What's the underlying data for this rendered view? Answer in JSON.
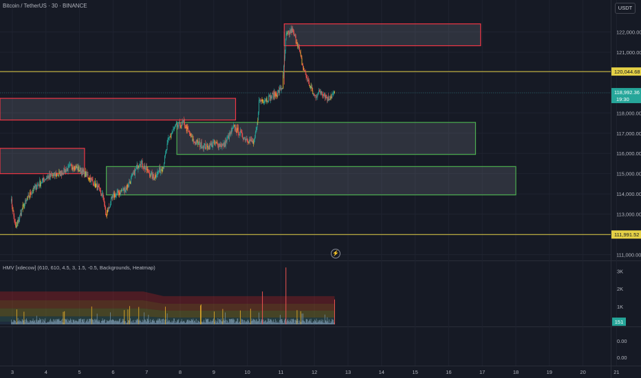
{
  "header": {
    "title": "Bitcoin / TetherUS · 30 · BINANCE",
    "currency_button": "USDT"
  },
  "indicator": {
    "label": "HMV [xdecow] (610, 610, 4.5, 3, 1.5, -0.5, Backgrounds, Heatmap)"
  },
  "colors": {
    "background": "#161a25",
    "bull": "#26a69a",
    "bear": "#ef5350",
    "highlight": "#f0b429",
    "level_line": "#e5d146",
    "zone_red": "#f23645",
    "zone_green": "#4caf50"
  },
  "price_labels": {
    "level_upper": "120,044.68",
    "current_price": "118,992.36",
    "countdown": "19:30",
    "level_lower": "111,991.52",
    "volume_current": "151"
  },
  "chart_data": {
    "type": "candlestick",
    "symbol": "Bitcoin / TetherUS",
    "interval": "30",
    "exchange": "BINANCE",
    "ylim": [
      111000,
      122500
    ],
    "y_ticks": [
      111000,
      112000,
      113000,
      114000,
      115000,
      116000,
      117000,
      118000,
      119000,
      120000,
      121000,
      122000
    ],
    "y_tick_labels": [
      "111,000.00",
      "112,000.00",
      "113,000.00",
      "114,000.00",
      "115,000.00",
      "116,000.00",
      "117,000.00",
      "118,000.00",
      "119,000.00",
      "120,000.00",
      "121,000.00",
      "122,000.00"
    ],
    "x_tick_labels": [
      "3",
      "4",
      "5",
      "6",
      "7",
      "8",
      "9",
      "10",
      "11",
      "12",
      "13",
      "14",
      "15",
      "16",
      "17",
      "18",
      "19",
      "20",
      "21"
    ],
    "horizontal_levels": [
      120044.68,
      111991.52
    ],
    "current_price": 118992.36,
    "price_path": [
      {
        "day": 2.95,
        "price": 113800
      },
      {
        "day": 3.1,
        "price": 112300
      },
      {
        "day": 3.3,
        "price": 113300
      },
      {
        "day": 3.6,
        "price": 114200
      },
      {
        "day": 4.0,
        "price": 114800
      },
      {
        "day": 4.4,
        "price": 115000
      },
      {
        "day": 4.8,
        "price": 115400
      },
      {
        "day": 5.0,
        "price": 115200
      },
      {
        "day": 5.3,
        "price": 114800
      },
      {
        "day": 5.5,
        "price": 114400
      },
      {
        "day": 5.72,
        "price": 113800
      },
      {
        "day": 5.78,
        "price": 112900
      },
      {
        "day": 6.0,
        "price": 113900
      },
      {
        "day": 6.4,
        "price": 114300
      },
      {
        "day": 6.8,
        "price": 115600
      },
      {
        "day": 7.2,
        "price": 114800
      },
      {
        "day": 7.5,
        "price": 115400
      },
      {
        "day": 7.65,
        "price": 116700
      },
      {
        "day": 7.85,
        "price": 117300
      },
      {
        "day": 8.1,
        "price": 117500
      },
      {
        "day": 8.4,
        "price": 116600
      },
      {
        "day": 8.8,
        "price": 116300
      },
      {
        "day": 9.0,
        "price": 116500
      },
      {
        "day": 9.3,
        "price": 116400
      },
      {
        "day": 9.6,
        "price": 117300
      },
      {
        "day": 9.9,
        "price": 116800
      },
      {
        "day": 10.2,
        "price": 116500
      },
      {
        "day": 10.3,
        "price": 117500
      },
      {
        "day": 10.35,
        "price": 118600
      },
      {
        "day": 10.6,
        "price": 118700
      },
      {
        "day": 10.9,
        "price": 119000
      },
      {
        "day": 11.05,
        "price": 119300
      },
      {
        "day": 11.15,
        "price": 121800
      },
      {
        "day": 11.33,
        "price": 122100
      },
      {
        "day": 11.5,
        "price": 121400
      },
      {
        "day": 11.65,
        "price": 120300
      },
      {
        "day": 11.8,
        "price": 119600
      },
      {
        "day": 12.0,
        "price": 118800
      },
      {
        "day": 12.2,
        "price": 119100
      },
      {
        "day": 12.4,
        "price": 118700
      },
      {
        "day": 12.6,
        "price": 118992
      }
    ],
    "zones": [
      {
        "type": "supply",
        "x_start": 11.1,
        "x_end": 16.95,
        "y_low": 121320,
        "y_high": 122400
      },
      {
        "type": "supply",
        "x_start": 2.6,
        "x_end": 9.65,
        "y_low": 117650,
        "y_high": 118720
      },
      {
        "type": "supply",
        "x_start": 2.6,
        "x_end": 5.15,
        "y_low": 115000,
        "y_high": 116250
      },
      {
        "type": "demand",
        "x_start": 7.9,
        "x_end": 16.8,
        "y_low": 115950,
        "y_high": 117530
      },
      {
        "type": "demand",
        "x_start": 5.8,
        "x_end": 18.0,
        "y_low": 113950,
        "y_high": 115350
      }
    ],
    "volume_indicator": {
      "name": "HMV [xdecow]",
      "y_tick_labels": [
        "3K",
        "2K",
        "1K"
      ],
      "y_ticks": [
        3000,
        2000,
        1000
      ],
      "ylim": [
        0,
        3400
      ],
      "current_value": "151",
      "lower_pane_ticks": [
        "0.00",
        "0.00"
      ]
    }
  }
}
